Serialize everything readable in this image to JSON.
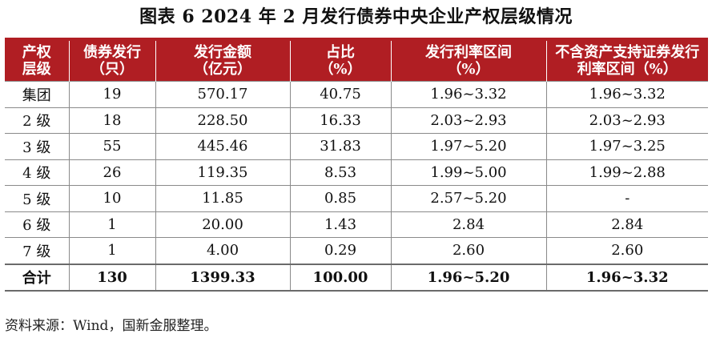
{
  "title": "图表 6  2024 年 2 月发行债券中央企业产权层级情况",
  "columns": [
    "产权\n层级",
    "债券发行\n（只）",
    "发行金额\n（亿元）",
    "占比\n（%）",
    "发行利率区间\n（%）",
    "不含资产支持证券发行\n利率区间（%）"
  ],
  "rows": [
    [
      "集团",
      "19",
      "570.17",
      "40.75",
      "1.96~3.32",
      "1.96~3.32"
    ],
    [
      "2 级",
      "18",
      "228.50",
      "16.33",
      "2.03~2.93",
      "2.03~2.93"
    ],
    [
      "3 级",
      "55",
      "445.46",
      "31.83",
      "1.97~5.20",
      "1.97~3.25"
    ],
    [
      "4 级",
      "26",
      "119.35",
      "8.53",
      "1.99~5.00",
      "1.99~2.88"
    ],
    [
      "5 级",
      "10",
      "11.85",
      "0.85",
      "2.57~5.20",
      "-"
    ],
    [
      "6 级",
      "1",
      "20.00",
      "1.43",
      "2.84",
      "2.84"
    ],
    [
      "7 级",
      "1",
      "4.00",
      "0.29",
      "2.60",
      "2.60"
    ]
  ],
  "total_row": [
    "合计",
    "130",
    "1399.33",
    "100.00",
    "1.96~5.20",
    "1.96~3.32"
  ],
  "source": "资料来源：Wind，国新金服整理。",
  "colors": {
    "header_bg": "#b01e23",
    "header_text": "#ffffff"
  }
}
